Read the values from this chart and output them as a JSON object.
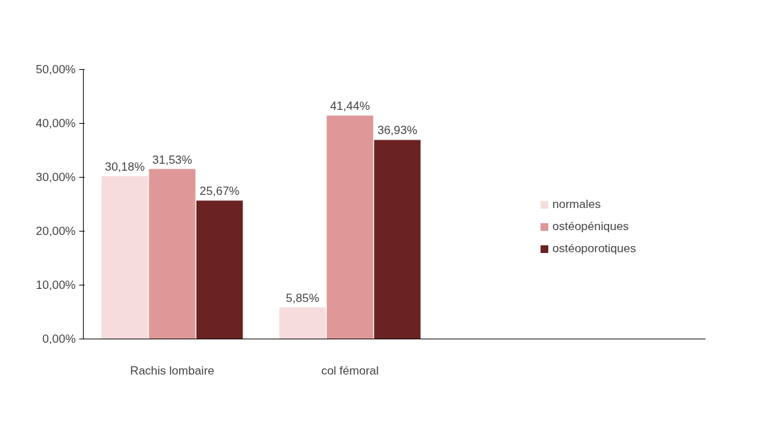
{
  "chart_data": {
    "type": "bar",
    "categories": [
      "Rachis lombaire",
      "col fémoral"
    ],
    "series": [
      {
        "name": "normales",
        "color": "#f6dcdc",
        "values": [
          30.18,
          5.85
        ],
        "value_labels": [
          "30,18%",
          "5,85%"
        ]
      },
      {
        "name": "ostéopéniques",
        "color": "#df9797",
        "values": [
          31.53,
          41.44
        ],
        "value_labels": [
          "31,53%",
          "41,44%"
        ]
      },
      {
        "name": "ostéoporotiques",
        "color": "#6b2222",
        "values": [
          25.67,
          36.93
        ],
        "value_labels": [
          "25,67%",
          "36,93%"
        ]
      }
    ],
    "ylim": [
      0,
      50
    ],
    "yticks": [
      {
        "value": 0,
        "label": "0,00%"
      },
      {
        "value": 10,
        "label": "10,00%"
      },
      {
        "value": 20,
        "label": "20,00%"
      },
      {
        "value": 30,
        "label": "30,00%"
      },
      {
        "value": 40,
        "label": "40,00%"
      },
      {
        "value": 50,
        "label": "50,00%"
      }
    ],
    "grid": false,
    "legend": "right"
  }
}
